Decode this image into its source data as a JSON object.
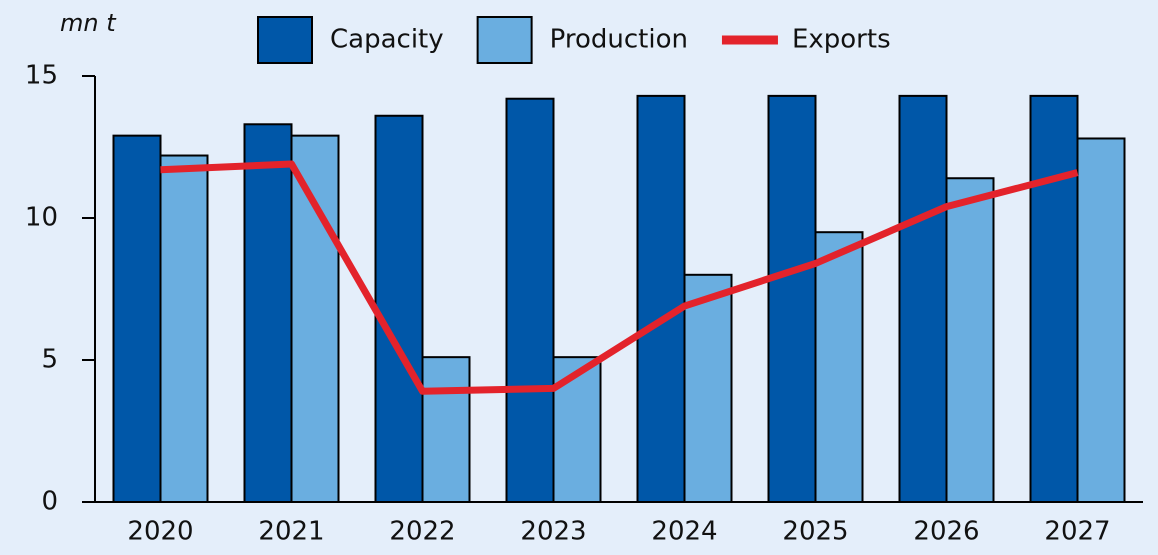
{
  "chart_data": {
    "type": "bar",
    "y_label": "mn t",
    "categories": [
      "2020",
      "2021",
      "2022",
      "2023",
      "2024",
      "2025",
      "2026",
      "2027"
    ],
    "series": [
      {
        "name": "Capacity",
        "color": "#0057a8",
        "values": [
          12.9,
          13.3,
          13.6,
          14.2,
          14.3,
          14.3,
          14.3,
          14.3
        ]
      },
      {
        "name": "Production",
        "color": "#6aaee0",
        "values": [
          12.2,
          12.9,
          5.1,
          5.1,
          8.0,
          9.5,
          11.4,
          12.8
        ]
      },
      {
        "name": "Exports",
        "color": "#e3232b",
        "type": "line",
        "values": [
          11.7,
          11.9,
          3.9,
          4.0,
          6.9,
          8.4,
          10.4,
          11.6
        ]
      }
    ],
    "ylim": [
      0,
      15
    ],
    "yticks": [
      0,
      5,
      10,
      15
    ],
    "legend": "top"
  }
}
